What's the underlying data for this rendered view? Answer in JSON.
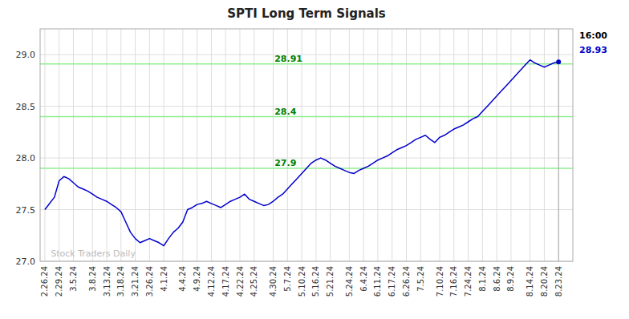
{
  "chart_data": {
    "type": "line",
    "title": "SPTI Long Term Signals",
    "categories": [
      "2.26.24",
      null,
      null,
      "2.29.24",
      null,
      null,
      "3.5.24",
      null,
      null,
      null,
      "3.8.24",
      null,
      null,
      "3.13.24",
      null,
      null,
      "3.18.24",
      null,
      null,
      "3.21.24",
      null,
      null,
      "3.26.24",
      null,
      null,
      "4.1.24",
      null,
      null,
      null,
      "4.4.24",
      null,
      null,
      "4.9.24",
      null,
      null,
      "4.12.24",
      null,
      null,
      "4.17.24",
      null,
      null,
      "4.22.24",
      null,
      null,
      "4.25.24",
      null,
      null,
      null,
      "4.30.24",
      null,
      null,
      "5.7.24",
      null,
      null,
      "5.10.24",
      null,
      null,
      "5.16.24",
      null,
      null,
      "5.21.24",
      null,
      null,
      null,
      "5.24.24",
      null,
      null,
      "6.4.24",
      null,
      null,
      "6.11.24",
      null,
      null,
      "6.17.24",
      null,
      null,
      "6.26.24",
      null,
      null,
      "7.5.24",
      null,
      null,
      null,
      "7.10.24",
      null,
      null,
      "7.16.24",
      null,
      null,
      "7.24.24",
      null,
      null,
      "8.1.24",
      null,
      null,
      "8.6.24",
      null,
      null,
      "8.9.24",
      null,
      null,
      null,
      "8.14.24",
      null,
      null,
      "8.20.24",
      null,
      null,
      "8.23.24"
    ],
    "values": [
      27.5,
      27.56,
      27.62,
      27.78,
      27.82,
      27.8,
      27.76,
      27.72,
      27.7,
      27.68,
      27.65,
      27.62,
      27.6,
      27.58,
      27.55,
      27.52,
      27.48,
      27.38,
      27.28,
      27.22,
      27.18,
      27.2,
      27.22,
      27.2,
      27.18,
      27.15,
      27.22,
      27.28,
      27.32,
      27.38,
      27.5,
      27.52,
      27.55,
      27.56,
      27.58,
      27.56,
      27.54,
      27.52,
      27.55,
      27.58,
      27.6,
      27.62,
      27.65,
      27.6,
      27.58,
      27.56,
      27.54,
      27.55,
      27.58,
      27.62,
      27.65,
      27.7,
      27.75,
      27.8,
      27.85,
      27.9,
      27.95,
      27.98,
      28.0,
      27.98,
      27.95,
      27.92,
      27.9,
      27.88,
      27.86,
      27.85,
      27.88,
      27.9,
      27.92,
      27.95,
      27.98,
      28.0,
      28.02,
      28.05,
      28.08,
      28.1,
      28.12,
      28.15,
      28.18,
      28.2,
      28.22,
      28.18,
      28.15,
      28.2,
      28.22,
      28.25,
      28.28,
      28.3,
      28.32,
      28.35,
      28.38,
      28.4,
      28.45,
      28.5,
      28.55,
      28.6,
      28.65,
      28.7,
      28.75,
      28.8,
      28.85,
      28.9,
      28.95,
      28.92,
      28.9,
      28.88,
      28.9,
      28.92,
      28.93
    ],
    "color": "#0000CC",
    "ylim": [
      27.0,
      29.25
    ],
    "yticks": [
      27.0,
      27.5,
      28.0,
      28.5,
      29.0
    ],
    "grid": true,
    "annotations": [
      {
        "y": 27.9,
        "text": "27.9",
        "color": "#90EE90",
        "text_color": "#008000"
      },
      {
        "y": 28.4,
        "text": "28.4",
        "color": "#90EE90",
        "text_color": "#008000"
      },
      {
        "y": 28.91,
        "text": "28.91",
        "color": "#90EE90",
        "text_color": "#008000"
      },
      {
        "text": "Stock Traders Daily",
        "color": "#BBBBBB"
      },
      {
        "text": "16:00",
        "color": "#000000"
      },
      {
        "text": "28.93",
        "color": "#0000CC"
      }
    ]
  }
}
